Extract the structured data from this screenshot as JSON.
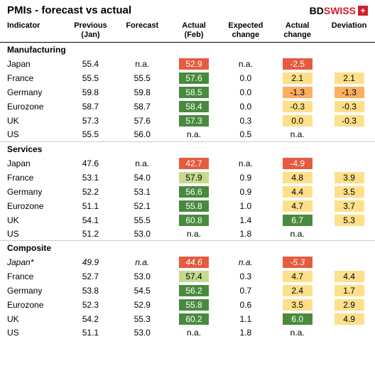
{
  "title": "PMIs - forecast vs actual",
  "logo": {
    "bd": "BD",
    "swiss": "SWISS"
  },
  "headers": {
    "indicator": "Indicator",
    "previous": "Previous\n(Jan)",
    "forecast": "Forecast",
    "actual": "Actual\n(Feb)",
    "expected_change": "Expected\nchange",
    "actual_change": "Actual\nchange",
    "deviation": "Deviation"
  },
  "colors": {
    "dark_green": "#4a8a3e",
    "light_green": "#c5da8f",
    "yellow": "#fee08b",
    "orange": "#fdae61",
    "red": "#e65b3f",
    "white": "#ffffff"
  },
  "sections": [
    {
      "name": "Manufacturing",
      "rows": [
        {
          "indicator": "Japan",
          "previous": "55.4",
          "forecast": "n.a.",
          "actual": "52.9",
          "actual_bg": "red",
          "expected_change": "n.a.",
          "actual_change": "-2.5",
          "actual_change_bg": "red",
          "deviation": ""
        },
        {
          "indicator": "France",
          "previous": "55.5",
          "forecast": "55.5",
          "actual": "57.6",
          "actual_bg": "dark_green",
          "expected_change": "0.0",
          "actual_change": "2.1",
          "actual_change_bg": "yellow",
          "deviation": "2.1",
          "deviation_bg": "yellow"
        },
        {
          "indicator": "Germany",
          "previous": "59.8",
          "forecast": "59.8",
          "actual": "58.5",
          "actual_bg": "dark_green",
          "expected_change": "0.0",
          "actual_change": "-1.3",
          "actual_change_bg": "orange",
          "deviation": "-1.3",
          "deviation_bg": "orange"
        },
        {
          "indicator": "Eurozone",
          "previous": "58.7",
          "forecast": "58.7",
          "actual": "58.4",
          "actual_bg": "dark_green",
          "expected_change": "0.0",
          "actual_change": "-0.3",
          "actual_change_bg": "yellow",
          "deviation": "-0.3",
          "deviation_bg": "yellow"
        },
        {
          "indicator": "UK",
          "previous": "57.3",
          "forecast": "57.6",
          "actual": "57.3",
          "actual_bg": "dark_green",
          "expected_change": "0.3",
          "actual_change": "0.0",
          "actual_change_bg": "yellow",
          "deviation": "-0.3",
          "deviation_bg": "yellow"
        },
        {
          "indicator": "US",
          "previous": "55.5",
          "forecast": "56.0",
          "actual": "n.a.",
          "expected_change": "0.5",
          "actual_change": "n.a.",
          "deviation": ""
        }
      ]
    },
    {
      "name": "Services",
      "rows": [
        {
          "indicator": "Japan",
          "previous": "47.6",
          "forecast": "n.a.",
          "actual": "42.7",
          "actual_bg": "red",
          "expected_change": "n.a.",
          "actual_change": "-4.9",
          "actual_change_bg": "red",
          "deviation": ""
        },
        {
          "indicator": "France",
          "previous": "53.1",
          "forecast": "54.0",
          "actual": "57.9",
          "actual_bg": "light_green",
          "expected_change": "0.9",
          "actual_change": "4.8",
          "actual_change_bg": "yellow",
          "deviation": "3.9",
          "deviation_bg": "yellow"
        },
        {
          "indicator": "Germany",
          "previous": "52.2",
          "forecast": "53.1",
          "actual": "56.6",
          "actual_bg": "dark_green",
          "expected_change": "0.9",
          "actual_change": "4.4",
          "actual_change_bg": "yellow",
          "deviation": "3.5",
          "deviation_bg": "yellow"
        },
        {
          "indicator": "Eurozone",
          "previous": "51.1",
          "forecast": "52.1",
          "actual": "55.8",
          "actual_bg": "dark_green",
          "expected_change": "1.0",
          "actual_change": "4.7",
          "actual_change_bg": "yellow",
          "deviation": "3.7",
          "deviation_bg": "yellow"
        },
        {
          "indicator": "UK",
          "previous": "54.1",
          "forecast": "55.5",
          "actual": "60.8",
          "actual_bg": "dark_green",
          "expected_change": "1.4",
          "actual_change": "6.7",
          "actual_change_bg": "dark_green",
          "deviation": "5.3",
          "deviation_bg": "yellow"
        },
        {
          "indicator": "US",
          "previous": "51.2",
          "forecast": "53.0",
          "actual": "n.a.",
          "expected_change": "1.8",
          "actual_change": "n.a.",
          "deviation": ""
        }
      ]
    },
    {
      "name": "Composite",
      "rows": [
        {
          "indicator": "Japan*",
          "italic": true,
          "previous": "49.9",
          "forecast": "n.a.",
          "actual": "44.6",
          "actual_bg": "red",
          "expected_change": "n.a.",
          "actual_change": "-5.3",
          "actual_change_bg": "red",
          "deviation": ""
        },
        {
          "indicator": "France",
          "previous": "52.7",
          "forecast": "53.0",
          "actual": "57.4",
          "actual_bg": "light_green",
          "expected_change": "0.3",
          "actual_change": "4.7",
          "actual_change_bg": "yellow",
          "deviation": "4.4",
          "deviation_bg": "yellow"
        },
        {
          "indicator": "Germany",
          "previous": "53.8",
          "forecast": "54.5",
          "actual": "56.2",
          "actual_bg": "dark_green",
          "expected_change": "0.7",
          "actual_change": "2.4",
          "actual_change_bg": "yellow",
          "deviation": "1.7",
          "deviation_bg": "yellow"
        },
        {
          "indicator": "Eurozone",
          "previous": "52.3",
          "forecast": "52.9",
          "actual": "55.8",
          "actual_bg": "dark_green",
          "expected_change": "0.6",
          "actual_change": "3.5",
          "actual_change_bg": "yellow",
          "deviation": "2.9",
          "deviation_bg": "yellow"
        },
        {
          "indicator": "UK",
          "previous": "54.2",
          "forecast": "55.3",
          "actual": "60.2",
          "actual_bg": "dark_green",
          "expected_change": "1.1",
          "actual_change": "6.0",
          "actual_change_bg": "dark_green",
          "deviation": "4.9",
          "deviation_bg": "yellow"
        },
        {
          "indicator": "US",
          "previous": "51.1",
          "forecast": "53.0",
          "actual": "n.a.",
          "expected_change": "1.8",
          "actual_change": "n.a.",
          "deviation": ""
        }
      ]
    }
  ]
}
